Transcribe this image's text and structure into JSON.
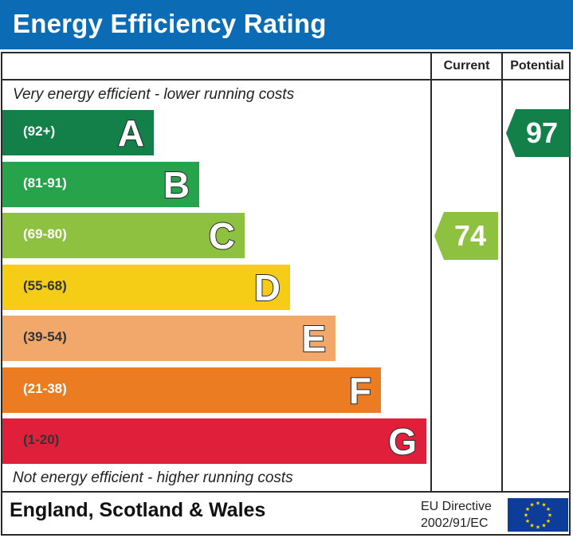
{
  "header": {
    "title": "Energy Efficiency Rating"
  },
  "columns": {
    "current": "Current",
    "potential": "Potential"
  },
  "top_note": "Very energy efficient - lower running costs",
  "bottom_note": "Not energy efficient - higher running costs",
  "chart_data": {
    "type": "bar",
    "title": "Energy Efficiency Rating",
    "categories": [
      "A",
      "B",
      "C",
      "D",
      "E",
      "F",
      "G"
    ],
    "ranges": [
      "(92+)",
      "(81-91)",
      "(69-80)",
      "(55-68)",
      "(39-54)",
      "(21-38)",
      "(1-20)"
    ],
    "colors": [
      "#13804a",
      "#27a34b",
      "#8ec13f",
      "#f5cd16",
      "#f2a86b",
      "#eb7c22",
      "#e0203a"
    ],
    "current": {
      "value": 74,
      "band": "C",
      "color": "#8ec13f"
    },
    "potential": {
      "value": 97,
      "band": "A",
      "color": "#13804a"
    }
  },
  "footer": {
    "region": "England, Scotland & Wales",
    "directive_line1": "EU Directive",
    "directive_line2": "2002/91/EC"
  }
}
